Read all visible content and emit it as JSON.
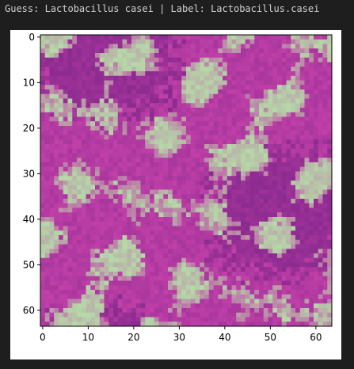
{
  "output": {
    "caption": "Guess: Lactobacillus casei | Label: Lactobacillus.casei"
  },
  "chart_data": {
    "type": "heatmap",
    "title": "",
    "xlabel": "",
    "ylabel": "",
    "xlim": [
      -0.5,
      63.5
    ],
    "ylim": [
      63.5,
      -0.5
    ],
    "grid": false,
    "x_ticks": [
      0,
      10,
      20,
      30,
      40,
      50,
      60
    ],
    "y_ticks": [
      0,
      10,
      20,
      30,
      40,
      50,
      60
    ],
    "x_tick_labels": [
      "0",
      "10",
      "20",
      "30",
      "40",
      "50",
      "60"
    ],
    "y_tick_labels": [
      "0",
      "10",
      "20",
      "30",
      "40",
      "50",
      "60"
    ],
    "image_size": [
      64,
      64
    ],
    "colors": {
      "light_green": "#b6d9a8",
      "magenta": "#c040a8",
      "dark_purple": "#8a2a8f"
    }
  }
}
